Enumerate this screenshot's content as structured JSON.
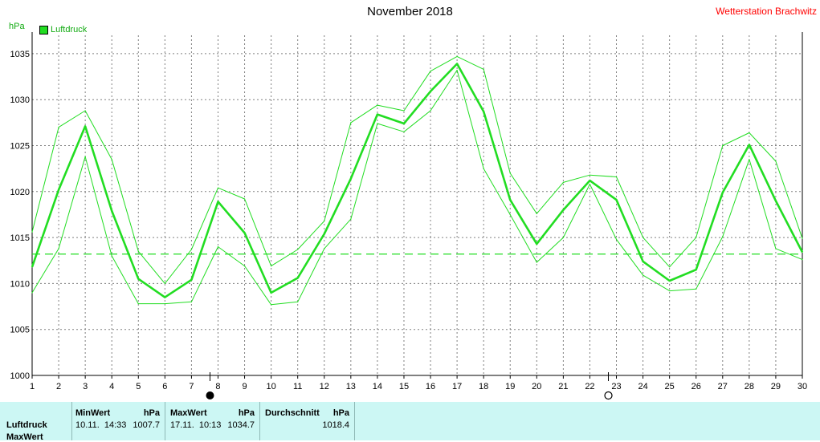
{
  "header": {
    "title": "November 2018",
    "station": "Wetterstation Brachwitz",
    "unit": "hPa",
    "legend_label": "Luftdruck"
  },
  "colors": {
    "series": "#22dd22",
    "series_text": "#11aa11",
    "station": "#ff0000",
    "grid": "#808080",
    "panel": "#ccf7f4"
  },
  "chart_data": {
    "type": "line",
    "title": "November 2018",
    "ylabel": "hPa",
    "x": [
      1,
      2,
      3,
      4,
      5,
      6,
      7,
      8,
      9,
      10,
      11,
      12,
      13,
      14,
      15,
      16,
      17,
      18,
      19,
      20,
      21,
      22,
      23,
      24,
      25,
      26,
      27,
      28,
      29,
      30
    ],
    "ylim": [
      1000,
      1037
    ],
    "yticks": [
      1000,
      1005,
      1010,
      1015,
      1020,
      1025,
      1030,
      1035
    ],
    "grid": true,
    "legend": "top-left",
    "series": [
      {
        "name": "Luftdruck",
        "role": "mean",
        "values": [
          1011.8,
          1020.2,
          1027.1,
          1017.9,
          1010.5,
          1008.5,
          1010.4,
          1018.9,
          1015.5,
          1009.0,
          1010.6,
          1015.4,
          1021.4,
          1028.4,
          1027.4,
          1030.9,
          1033.9,
          1028.7,
          1019.1,
          1014.3,
          1018.0,
          1021.2,
          1019.1,
          1012.4,
          1010.3,
          1011.5,
          1019.9,
          1025.1,
          1019.0,
          1013.4
        ]
      },
      {
        "role": "max",
        "values": [
          1015.6,
          1027.0,
          1028.8,
          1023.5,
          1013.5,
          1010.0,
          1013.7,
          1020.4,
          1019.2,
          1011.9,
          1013.7,
          1016.8,
          1027.5,
          1029.4,
          1028.8,
          1033.1,
          1034.7,
          1033.3,
          1022.0,
          1017.6,
          1021.0,
          1021.8,
          1021.6,
          1015.0,
          1011.8,
          1015.0,
          1025.0,
          1026.4,
          1023.3,
          1014.9
        ]
      },
      {
        "role": "min",
        "values": [
          1009.0,
          1013.8,
          1023.8,
          1013.0,
          1007.8,
          1007.8,
          1008.0,
          1014.0,
          1011.9,
          1007.7,
          1008.0,
          1013.8,
          1017.0,
          1027.4,
          1026.5,
          1028.8,
          1033.2,
          1022.5,
          1017.5,
          1012.3,
          1015.0,
          1020.8,
          1014.8,
          1010.9,
          1009.2,
          1009.4,
          1015.1,
          1023.5,
          1013.8,
          1012.6
        ]
      }
    ],
    "reference_line": {
      "value": 1013.2,
      "style": "dashed"
    },
    "moon_phases": [
      {
        "day": 8,
        "phase": "new-moon"
      },
      {
        "day": 23,
        "phase": "full-moon"
      }
    ]
  },
  "stats": {
    "row_labels": [
      "Luftdruck",
      "MaxWert"
    ],
    "min_header": "MinWert",
    "min_unit": "hPa",
    "min_time": "10.11.  14:33",
    "min_value": "1007.7",
    "max_header": "MaxWert",
    "max_unit": "hPa",
    "max_time": "17.11.  10:13",
    "max_value": "1034.7",
    "avg_header": "Durchschnitt",
    "avg_unit": "hPa",
    "avg_value": "1018.4"
  }
}
